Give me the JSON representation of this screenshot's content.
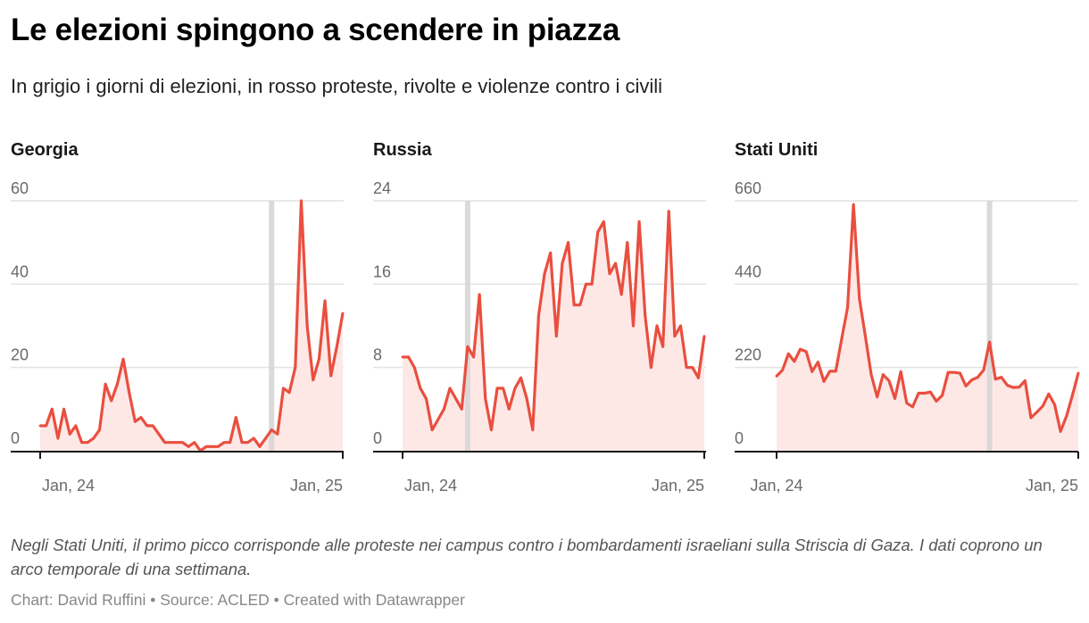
{
  "header": {
    "title": "Le elezioni spingono a scendere in piazza",
    "subtitle": "In grigio i giorni di elezioni, in rosso proteste, rivolte e violenze contro i civili"
  },
  "footer": {
    "notes": "Negli Stati Uniti, il primo picco corrisponde alle proteste nei campus contro i bombardamenti israeliani sulla Striscia di Gaza. I dati coprono un arco temporale di una settimana.",
    "byline": "Chart: David Ruffini • Source: ACLED • Created with Datawrapper"
  },
  "colors": {
    "line": "#e94f3f",
    "area": "#fde8e6",
    "election_band": "#d6d6d6",
    "grid": "#e2e2e2",
    "axis": "#181818"
  },
  "chart_data": [
    {
      "type": "area",
      "title": "Georgia",
      "xlabel": "",
      "ylabel": "",
      "ylim": [
        0,
        60
      ],
      "yticks": [
        "0",
        "20",
        "40",
        "60"
      ],
      "ytick_values": [
        0,
        20,
        40,
        60
      ],
      "xticks": [
        "Jan, 24",
        "Jan, 25"
      ],
      "xtick_index": [
        0,
        51
      ],
      "grid": true,
      "election_week_index": 39,
      "values": [
        6,
        6,
        10,
        3,
        10,
        4,
        6,
        2,
        2,
        3,
        5,
        16,
        12,
        16,
        22,
        14,
        7,
        8,
        6,
        6,
        4,
        2,
        2,
        2,
        2,
        1,
        2,
        0,
        1,
        1,
        1,
        2,
        2,
        8,
        2,
        2,
        3,
        1,
        3,
        5,
        4,
        15,
        14,
        20,
        60,
        30,
        17,
        22,
        36,
        18,
        25,
        33
      ]
    },
    {
      "type": "area",
      "title": "Russia",
      "xlabel": "",
      "ylabel": "",
      "ylim": [
        0,
        24
      ],
      "yticks": [
        "0",
        "8",
        "16",
        "24"
      ],
      "ytick_values": [
        0,
        8,
        16,
        24
      ],
      "xticks": [
        "Jan, 24",
        "Jan, 25"
      ],
      "xtick_index": [
        0,
        51
      ],
      "grid": true,
      "election_week_index": 11,
      "values": [
        9,
        9,
        8,
        6,
        5,
        2,
        3,
        4,
        6,
        5,
        4,
        10,
        9,
        15,
        5,
        2,
        6,
        6,
        4,
        6,
        7,
        5,
        2,
        13,
        17,
        19,
        11,
        18,
        20,
        14,
        14,
        16,
        16,
        21,
        22,
        17,
        18,
        15,
        20,
        12,
        22,
        13,
        8,
        12,
        10,
        23,
        11,
        12,
        8,
        8,
        7,
        11
      ]
    },
    {
      "type": "area",
      "title": "Stati Uniti",
      "xlabel": "",
      "ylabel": "",
      "ylim": [
        0,
        660
      ],
      "yticks": [
        "0",
        "220",
        "440",
        "660"
      ],
      "ytick_values": [
        0,
        220,
        440,
        660
      ],
      "xticks": [
        "Jan, 24",
        "Jan, 25"
      ],
      "xtick_index": [
        0,
        51
      ],
      "grid": true,
      "election_week_index": 36,
      "values": [
        197,
        213,
        256,
        236,
        268,
        262,
        209,
        234,
        183,
        210,
        210,
        295,
        378,
        650,
        402,
        303,
        201,
        142,
        201,
        185,
        138,
        209,
        126,
        116,
        152,
        152,
        155,
        131,
        146,
        207,
        207,
        205,
        171,
        187,
        194,
        213,
        287,
        189,
        194,
        173,
        167,
        168,
        185,
        87,
        102,
        118,
        150,
        122,
        51,
        91,
        146,
        205
      ]
    }
  ]
}
